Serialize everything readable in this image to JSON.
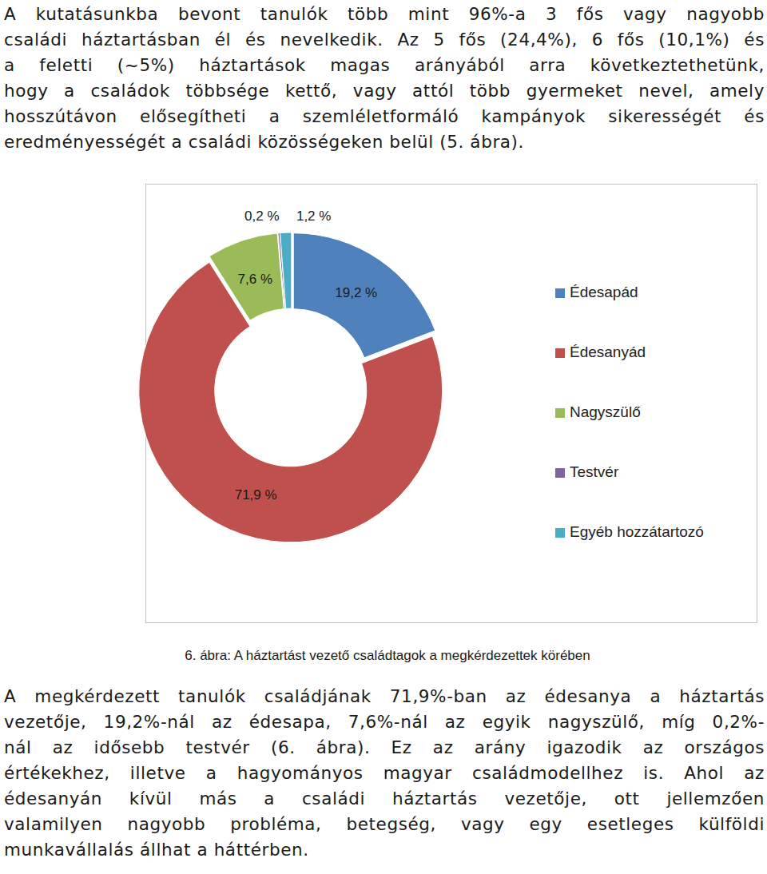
{
  "text_before": [
    "A kutatásunkba bevont tanulók több mint 96%-a 3 fős vagy nagyobb",
    "családi háztartásban él és nevelkedik. Az 5 fős (24,4%), 6 fős (10,1%) és",
    "a feletti (~5%) háztartások magas arányából arra következtethetünk,",
    "hogy a családok többsége kettő, vagy attól több gyermeket nevel, amely",
    "hosszútávon elősegítheti a szemléletformáló kampányok sikerességét és",
    "eredményességét a családi közösségeken belül (5. ábra)."
  ],
  "chart_data": {
    "type": "doughnut",
    "categories": [
      "Édesapád",
      "Édesanyád",
      "Nagyszülő",
      "Testvér",
      "Egyéb hozzátartozó"
    ],
    "values": [
      19.2,
      71.9,
      7.6,
      0.2,
      1.2
    ],
    "value_labels": [
      "19,2 %",
      "71,9 %",
      "7,6 %",
      "0,2 %",
      "1,2 %"
    ],
    "colors": [
      "#4f81bd",
      "#c0504d",
      "#9bbb59",
      "#8064a2",
      "#4bacc6"
    ],
    "data_labels": true,
    "legend": "right"
  },
  "caption": "6. ábra: A háztartást vezető családtagok a megkérdezettek körében",
  "text_after": [
    "A megkérdezett tanulók családjának 71,9%-ban az édesanya a háztartás",
    "vezetője, 19,2%-nál az édesapa, 7,6%-nál az egyik nagyszülő, míg 0,2%-",
    "nál az idősebb testvér (6. ábra). Ez az arány igazodik az országos",
    "értékekhez, illetve a hagyományos magyar családmodellhez is. Ahol az",
    "édesanyán kívül más a családi háztartás vezetője, ott jellemzően",
    "valamilyen nagyobb probléma, betegség, vagy egy esetleges külföldi",
    "munkavállalás állhat a háttérben."
  ]
}
